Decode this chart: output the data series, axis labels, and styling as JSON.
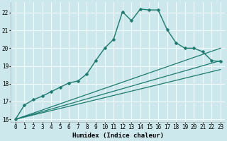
{
  "title": "",
  "xlabel": "Humidex (Indice chaleur)",
  "bg_color": "#cce8ec",
  "grid_color": "#ffffff",
  "line_color": "#1a7a6e",
  "xlim": [
    -0.5,
    23.5
  ],
  "ylim": [
    15.85,
    22.6
  ],
  "yticks": [
    16,
    17,
    18,
    19,
    20,
    21,
    22
  ],
  "xticks": [
    0,
    1,
    2,
    3,
    4,
    5,
    6,
    7,
    8,
    9,
    10,
    11,
    12,
    13,
    14,
    15,
    16,
    17,
    18,
    19,
    20,
    21,
    22,
    23
  ],
  "series": [
    {
      "x": [
        0,
        1,
        2,
        3,
        4,
        5,
        6,
        7,
        8,
        9,
        10,
        11,
        12,
        13,
        14,
        15,
        16,
        17,
        18,
        19,
        20,
        21,
        22,
        23
      ],
      "y": [
        16.0,
        16.8,
        17.1,
        17.3,
        17.55,
        17.8,
        18.05,
        18.15,
        18.55,
        19.3,
        20.0,
        20.5,
        22.05,
        21.55,
        22.2,
        22.15,
        22.15,
        21.05,
        20.3,
        20.0,
        20.0,
        19.8,
        19.3,
        19.25
      ],
      "marker": true,
      "markersize": 2.5,
      "linewidth": 1.0
    },
    {
      "x": [
        0,
        23
      ],
      "y": [
        16.0,
        20.0
      ],
      "marker": false,
      "linewidth": 0.9
    },
    {
      "x": [
        0,
        23
      ],
      "y": [
        16.0,
        19.3
      ],
      "marker": false,
      "linewidth": 0.9
    },
    {
      "x": [
        0,
        23
      ],
      "y": [
        16.0,
        18.8
      ],
      "marker": false,
      "linewidth": 0.9
    }
  ]
}
